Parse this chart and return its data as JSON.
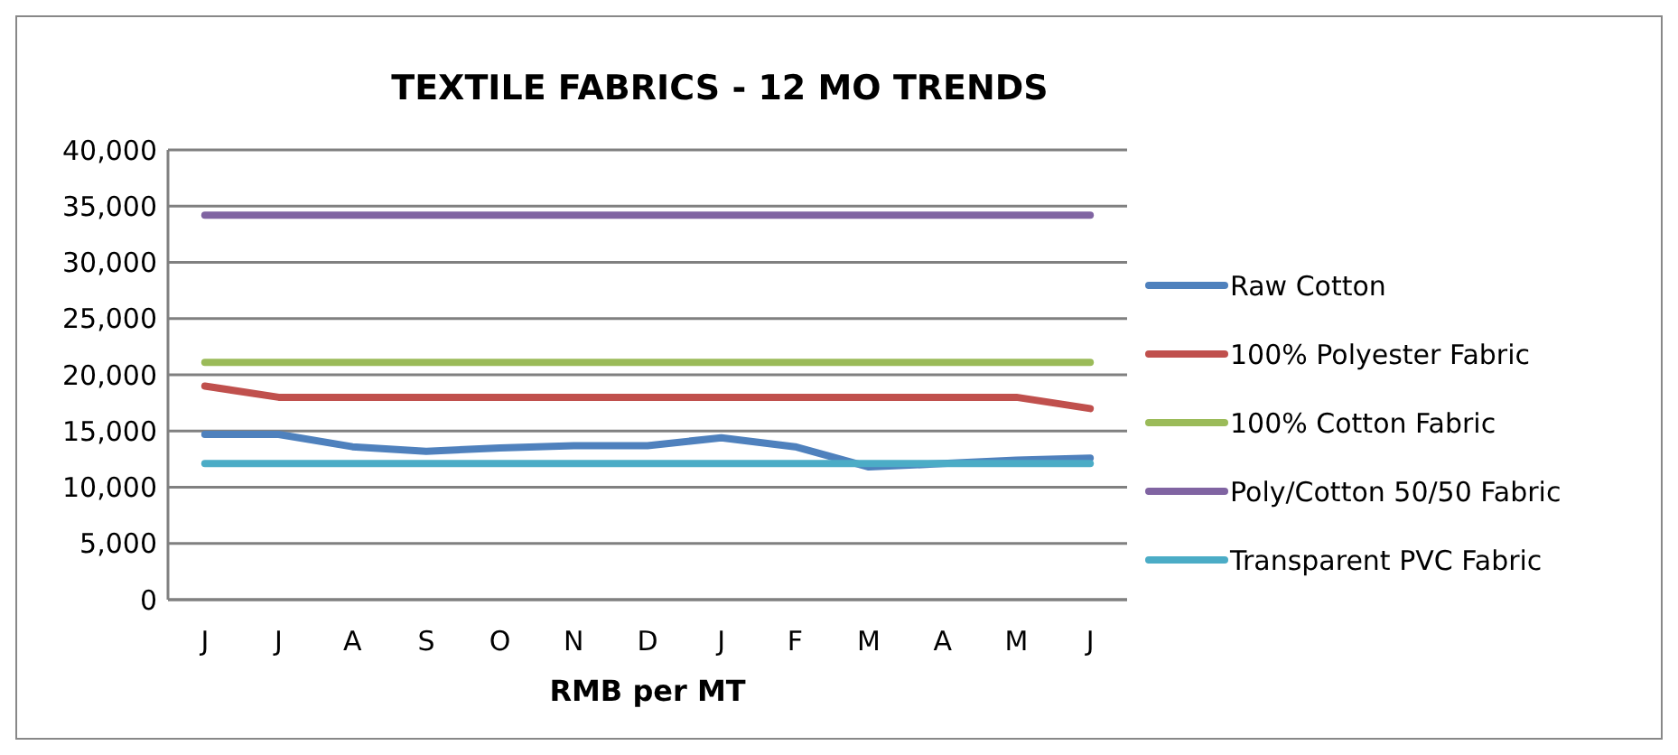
{
  "chart_data": {
    "type": "line",
    "title": "TEXTILE FABRICS - 12 MO TRENDS",
    "xlabel": "RMB per MT",
    "categories": [
      "J",
      "J",
      "A",
      "S",
      "O",
      "N",
      "D",
      "J",
      "F",
      "M",
      "A",
      "M",
      "J"
    ],
    "ylim": [
      0,
      40000
    ],
    "yticks": [
      {
        "value": 0,
        "label": "0"
      },
      {
        "value": 5000,
        "label": "5,000"
      },
      {
        "value": 10000,
        "label": "10,000"
      },
      {
        "value": 15000,
        "label": "15,000"
      },
      {
        "value": 20000,
        "label": "20,000"
      },
      {
        "value": 25000,
        "label": "25,000"
      },
      {
        "value": 30000,
        "label": "30,000"
      },
      {
        "value": 35000,
        "label": "35,000"
      },
      {
        "value": 40000,
        "label": "40,000"
      }
    ],
    "grid": "y",
    "legend": "right",
    "marker": "none",
    "line_style": "solid",
    "series": [
      {
        "name": "Raw Cotton",
        "color": "#4f81bd",
        "values": [
          14700,
          14700,
          13600,
          13200,
          13500,
          13700,
          13700,
          14400,
          13600,
          11800,
          12100,
          12400,
          12600
        ]
      },
      {
        "name": "100% Polyester Fabric",
        "color": "#c0504d",
        "values": [
          19000,
          18000,
          18000,
          18000,
          18000,
          18000,
          18000,
          18000,
          18000,
          18000,
          18000,
          18000,
          17000
        ]
      },
      {
        "name": "100% Cotton Fabric",
        "color": "#9bbb59",
        "values": [
          21100,
          21100,
          21100,
          21100,
          21100,
          21100,
          21100,
          21100,
          21100,
          21100,
          21100,
          21100,
          21100
        ]
      },
      {
        "name": "Poly/Cotton 50/50 Fabric",
        "color": "#8064a2",
        "values": [
          34200,
          34200,
          34200,
          34200,
          34200,
          34200,
          34200,
          34200,
          34200,
          34200,
          34200,
          34200,
          34200
        ]
      },
      {
        "name": "Transparent PVC Fabric",
        "color": "#4bacc6",
        "values": [
          12100,
          12100,
          12100,
          12100,
          12100,
          12100,
          12100,
          12100,
          12100,
          12100,
          12100,
          12100,
          12100
        ]
      }
    ]
  }
}
